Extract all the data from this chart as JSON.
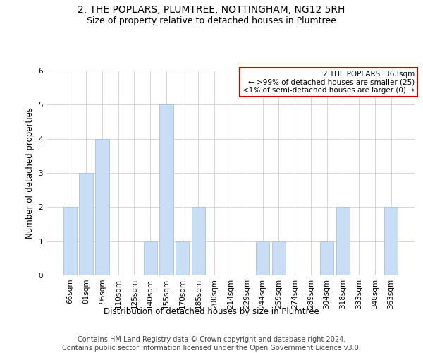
{
  "title_line1": "2, THE POPLARS, PLUMTREE, NOTTINGHAM, NG12 5RH",
  "title_line2": "Size of property relative to detached houses in Plumtree",
  "xlabel": "Distribution of detached houses by size in Plumtree",
  "ylabel": "Number of detached properties",
  "categories": [
    "66sqm",
    "81sqm",
    "96sqm",
    "110sqm",
    "125sqm",
    "140sqm",
    "155sqm",
    "170sqm",
    "185sqm",
    "200sqm",
    "214sqm",
    "229sqm",
    "244sqm",
    "259sqm",
    "274sqm",
    "289sqm",
    "304sqm",
    "318sqm",
    "333sqm",
    "348sqm",
    "363sqm"
  ],
  "values": [
    2,
    3,
    4,
    0,
    0,
    1,
    5,
    1,
    2,
    0,
    0,
    0,
    1,
    1,
    0,
    0,
    1,
    2,
    0,
    0,
    2
  ],
  "highlight_index": 20,
  "bar_color_normal": "#c9ddf5",
  "bar_edge_color": "#a8c4e0",
  "ylim": [
    0,
    6
  ],
  "yticks": [
    0,
    1,
    2,
    3,
    4,
    5,
    6
  ],
  "annotation_box_lines": [
    "2 THE POPLARS: 363sqm",
    "← >99% of detached houses are smaller (25)",
    "<1% of semi-detached houses are larger (0) →"
  ],
  "annotation_box_edge_color": "#cc0000",
  "footer_line1": "Contains HM Land Registry data © Crown copyright and database right 2024.",
  "footer_line2": "Contains public sector information licensed under the Open Government Licence v3.0.",
  "grid_color": "#d0d0d0",
  "background_color": "#ffffff",
  "title_fontsize": 10,
  "subtitle_fontsize": 9,
  "axis_label_fontsize": 8.5,
  "tick_fontsize": 7.5,
  "annotation_fontsize": 7.5,
  "footer_fontsize": 7
}
